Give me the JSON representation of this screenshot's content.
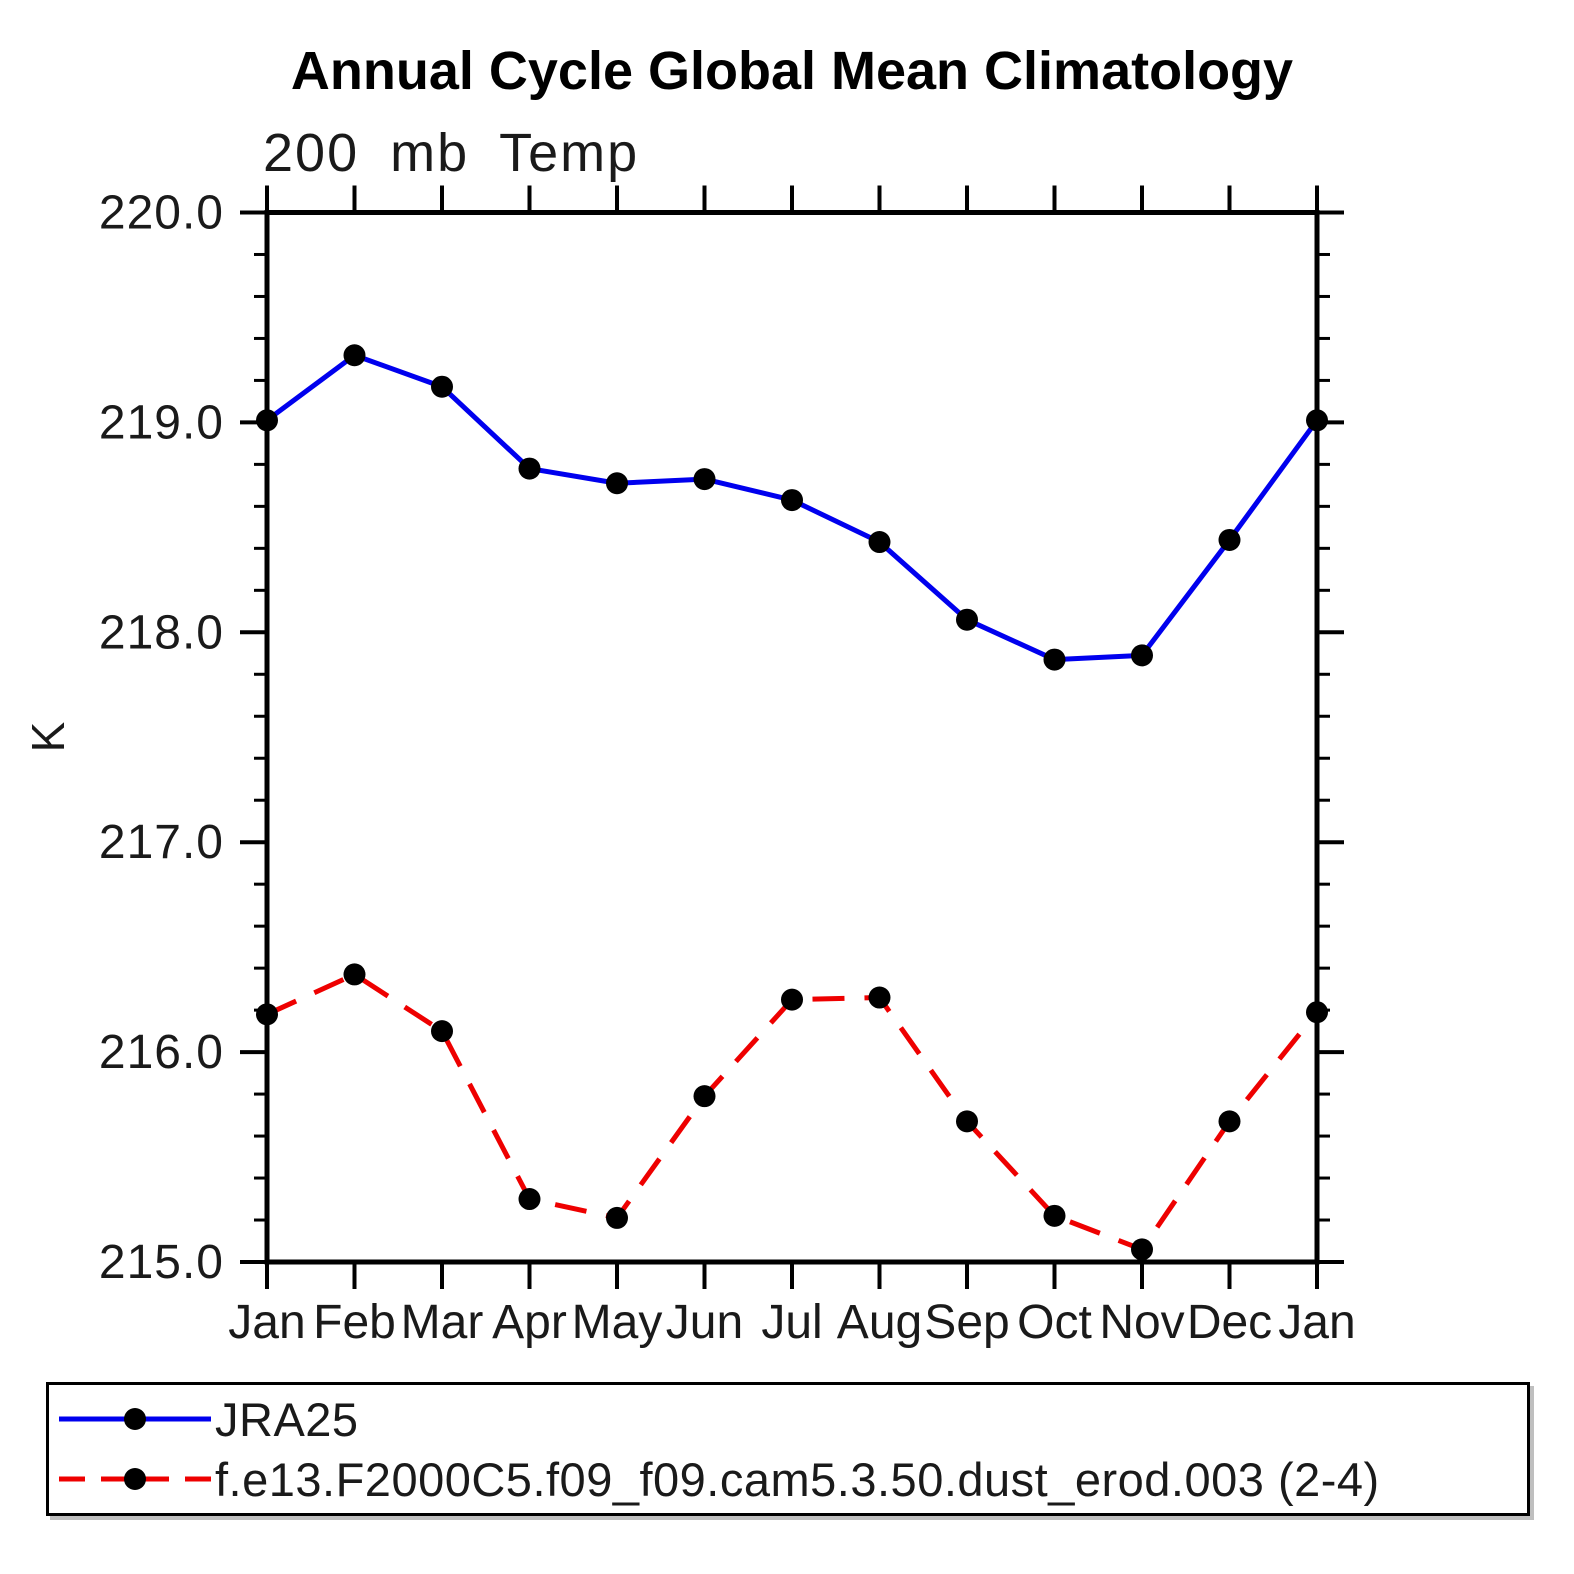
{
  "page": {
    "title": "Annual Cycle Global Mean Climatology",
    "subtitle_left": "200 mb Temp"
  },
  "chart_data": {
    "type": "line",
    "title": "Annual Cycle Global Mean Climatology",
    "subtitle_left": "200 mb Temp",
    "ylabel": "K",
    "xlabel": "",
    "categories": [
      "Jan",
      "Feb",
      "Mar",
      "Apr",
      "May",
      "Jun",
      "Jul",
      "Aug",
      "Sep",
      "Oct",
      "Nov",
      "Dec",
      "Jan"
    ],
    "series": [
      {
        "name": "JRA25",
        "color": "#0000ee",
        "line_style": "solid",
        "marker": "filled-circle",
        "marker_color": "#000000",
        "values": [
          219.01,
          219.32,
          219.17,
          218.78,
          218.71,
          218.73,
          218.63,
          218.43,
          218.06,
          217.87,
          217.89,
          218.44,
          219.01
        ]
      },
      {
        "name": "f.e13.F2000C5.f09_f09.cam5.3.50.dust_erod.003 (2-4)",
        "color": "#ee0000",
        "line_style": "dashed",
        "marker": "filled-circle",
        "marker_color": "#000000",
        "values": [
          216.18,
          216.37,
          216.1,
          215.3,
          215.21,
          215.79,
          216.25,
          216.26,
          215.67,
          215.22,
          215.06,
          215.67,
          216.19
        ]
      }
    ],
    "ylim": [
      215.0,
      220.0
    ],
    "y_major_step": 1.0,
    "y_minor_step": 0.2,
    "y_tick_labels": [
      "215.0",
      "216.0",
      "217.0",
      "218.0",
      "219.0",
      "220.0"
    ],
    "grid": false,
    "legend_position": "bottom-left-box",
    "units": "K"
  },
  "legend": {
    "entries": [
      {
        "label": "JRA25",
        "color": "#0000ee",
        "line_style": "solid"
      },
      {
        "label": "f.e13.F2000C5.f09_f09.cam5.3.50.dust_erod.003 (2-4)",
        "color": "#ee0000",
        "line_style": "dashed"
      }
    ]
  },
  "colors": {
    "background": "#ffffff",
    "axis": "#000000",
    "text": "#1a1a1a",
    "series_jra25": "#0000ee",
    "series_model": "#ee0000",
    "marker": "#000000"
  }
}
